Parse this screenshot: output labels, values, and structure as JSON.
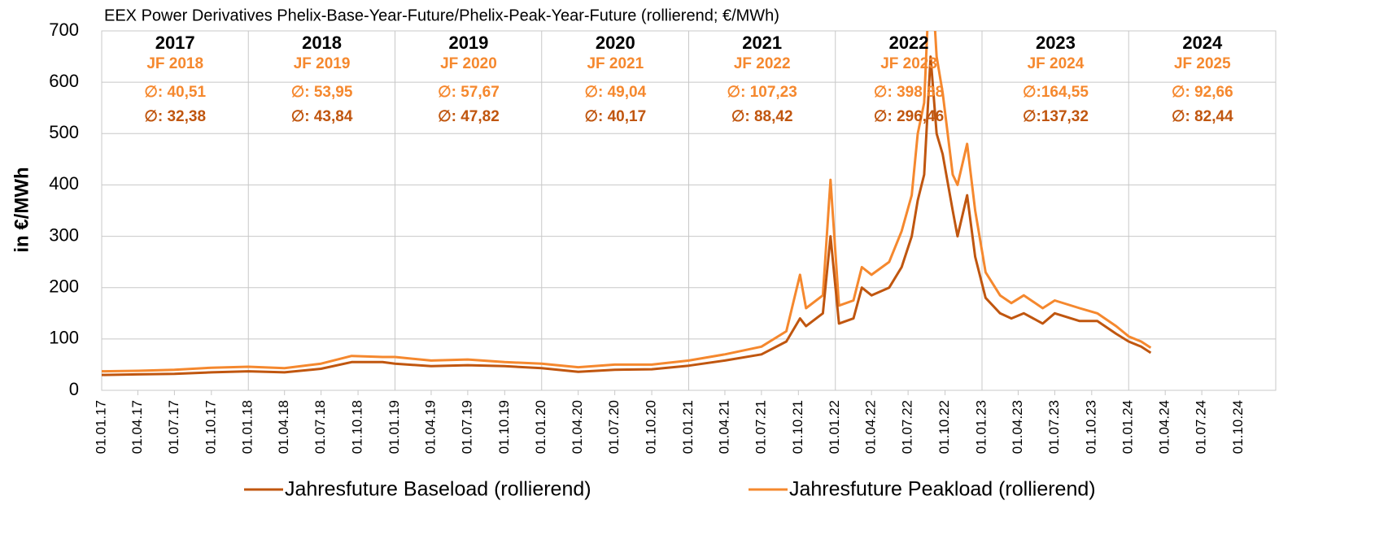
{
  "chart_data": {
    "type": "line",
    "title": "EEX Power Derivatives Phelix-Base-Year-Future/Phelix-Peak-Year-Future (rollierend; €/MWh)",
    "y_label": "in €/MWh",
    "x": [
      "2017-01-01",
      "2017-04-01",
      "2017-07-01",
      "2017-10-01",
      "2018-01-01",
      "2018-04-01",
      "2018-07-01",
      "2018-09-15",
      "2018-12-01",
      "2019-01-01",
      "2019-04-01",
      "2019-07-01",
      "2019-10-01",
      "2020-01-01",
      "2020-04-01",
      "2020-07-01",
      "2020-10-01",
      "2021-01-01",
      "2021-04-01",
      "2021-07-01",
      "2021-09-01",
      "2021-10-05",
      "2021-10-20",
      "2021-12-01",
      "2021-12-20",
      "2022-01-10",
      "2022-02-15",
      "2022-03-08",
      "2022-04-01",
      "2022-05-15",
      "2022-06-15",
      "2022-07-10",
      "2022-07-25",
      "2022-08-10",
      "2022-08-26",
      "2022-09-10",
      "2022-09-25",
      "2022-10-20",
      "2022-11-01",
      "2022-11-25",
      "2022-12-15",
      "2023-01-10",
      "2023-02-15",
      "2023-03-15",
      "2023-04-15",
      "2023-06-01",
      "2023-07-01",
      "2023-09-01",
      "2023-10-15",
      "2023-12-01",
      "2024-01-01",
      "2024-02-01",
      "2024-02-25"
    ],
    "series": [
      {
        "name": "Jahresfuture Baseload (rollierend)",
        "color": "#c0560f",
        "values": [
          30,
          31,
          32,
          35,
          37,
          35,
          42,
          55,
          55,
          52,
          47,
          49,
          47,
          43,
          36,
          40,
          41,
          48,
          58,
          70,
          95,
          140,
          125,
          150,
          300,
          130,
          140,
          200,
          185,
          200,
          240,
          300,
          370,
          420,
          650,
          500,
          460,
          350,
          300,
          380,
          260,
          180,
          150,
          140,
          150,
          130,
          150,
          135,
          135,
          110,
          95,
          85,
          73
        ]
      },
      {
        "name": "Jahresfuture Peakload (rollierend)",
        "color": "#f5882e",
        "values": [
          37,
          38,
          40,
          44,
          46,
          43,
          52,
          67,
          65,
          65,
          58,
          60,
          55,
          52,
          45,
          50,
          50,
          58,
          70,
          85,
          115,
          225,
          160,
          185,
          410,
          165,
          175,
          240,
          225,
          250,
          310,
          380,
          500,
          560,
          850,
          650,
          580,
          420,
          400,
          480,
          350,
          230,
          185,
          170,
          185,
          160,
          175,
          160,
          150,
          125,
          105,
          95,
          83
        ]
      }
    ],
    "xlim": [
      "2017-01-01",
      "2025-01-01"
    ],
    "xticks": [
      {
        "value": "2017-01-01",
        "label": "01.01.17"
      },
      {
        "value": "2017-04-01",
        "label": "01.04.17"
      },
      {
        "value": "2017-07-01",
        "label": "01.07.17"
      },
      {
        "value": "2017-10-01",
        "label": "01.10.17"
      },
      {
        "value": "2018-01-01",
        "label": "01.01.18"
      },
      {
        "value": "2018-04-01",
        "label": "01.04.18"
      },
      {
        "value": "2018-07-01",
        "label": "01.07.18"
      },
      {
        "value": "2018-10-01",
        "label": "01.10.18"
      },
      {
        "value": "2019-01-01",
        "label": "01.01.19"
      },
      {
        "value": "2019-04-01",
        "label": "01.04.19"
      },
      {
        "value": "2019-07-01",
        "label": "01.07.19"
      },
      {
        "value": "2019-10-01",
        "label": "01.10.19"
      },
      {
        "value": "2020-01-01",
        "label": "01.01.20"
      },
      {
        "value": "2020-04-01",
        "label": "01.04.20"
      },
      {
        "value": "2020-07-01",
        "label": "01.07.20"
      },
      {
        "value": "2020-10-01",
        "label": "01.10.20"
      },
      {
        "value": "2021-01-01",
        "label": "01.01.21"
      },
      {
        "value": "2021-04-01",
        "label": "01.04.21"
      },
      {
        "value": "2021-07-01",
        "label": "01.07.21"
      },
      {
        "value": "2021-10-01",
        "label": "01.10.21"
      },
      {
        "value": "2022-01-01",
        "label": "01.01.22"
      },
      {
        "value": "2022-04-01",
        "label": "01.04.22"
      },
      {
        "value": "2022-07-01",
        "label": "01.07.22"
      },
      {
        "value": "2022-10-01",
        "label": "01.10.22"
      },
      {
        "value": "2023-01-01",
        "label": "01.01.23"
      },
      {
        "value": "2023-04-01",
        "label": "01.04.23"
      },
      {
        "value": "2023-07-01",
        "label": "01.07.23"
      },
      {
        "value": "2023-10-01",
        "label": "01.10.23"
      },
      {
        "value": "2024-01-01",
        "label": "01.01.24"
      },
      {
        "value": "2024-04-01",
        "label": "01.04.24"
      },
      {
        "value": "2024-07-01",
        "label": "01.07.24"
      },
      {
        "value": "2024-10-01",
        "label": "01.10.24"
      }
    ],
    "ylim": [
      0,
      700
    ],
    "yticks": [
      0,
      100,
      200,
      300,
      400,
      500,
      600,
      700
    ],
    "grid": true,
    "legend": "bottom",
    "annotations": [
      {
        "year": "2017",
        "jf": "JF 2018",
        "peak_avg": "∅: 40,51",
        "base_avg": "∅: 32,38"
      },
      {
        "year": "2018",
        "jf": "JF 2019",
        "peak_avg": "∅: 53,95",
        "base_avg": "∅: 43,84"
      },
      {
        "year": "2019",
        "jf": "JF 2020",
        "peak_avg": "∅: 57,67",
        "base_avg": "∅: 47,82"
      },
      {
        "year": "2020",
        "jf": "JF 2021",
        "peak_avg": "∅: 49,04",
        "base_avg": "∅: 40,17"
      },
      {
        "year": "2021",
        "jf": "JF 2022",
        "peak_avg": "∅: 107,23",
        "base_avg": "∅: 88,42"
      },
      {
        "year": "2022",
        "jf": "JF 2023",
        "peak_avg": "∅: 398,88",
        "base_avg": "∅: 296,46"
      },
      {
        "year": "2023",
        "jf": "JF 2024",
        "peak_avg": "∅:164,55",
        "base_avg": "∅:137,32"
      },
      {
        "year": "2024",
        "jf": "JF 2025",
        "peak_avg": "∅: 92,66",
        "base_avg": "∅: 82,44"
      }
    ]
  }
}
